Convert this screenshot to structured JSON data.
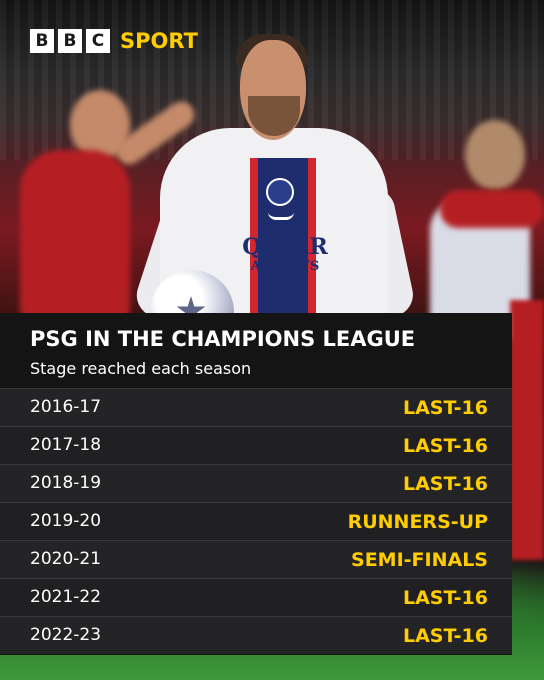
{
  "brand": {
    "logo_letters": [
      "B",
      "B",
      "C"
    ],
    "logo_word": "SPORT",
    "accent_color": "#ffcd00"
  },
  "photo": {
    "sponsor_line1": "QATAR",
    "sponsor_line2": "AIRWAYS"
  },
  "panel": {
    "title": "PSG IN THE CHAMPIONS LEAGUE",
    "subtitle": "Stage reached each season",
    "rows": [
      {
        "season": "2016-17",
        "stage": "LAST-16"
      },
      {
        "season": "2017-18",
        "stage": "LAST-16"
      },
      {
        "season": "2018-19",
        "stage": "LAST-16"
      },
      {
        "season": "2019-20",
        "stage": "RUNNERS-UP"
      },
      {
        "season": "2020-21",
        "stage": "SEMI-FINALS"
      },
      {
        "season": "2021-22",
        "stage": "LAST-16"
      },
      {
        "season": "2022-23",
        "stage": "LAST-16"
      }
    ]
  }
}
